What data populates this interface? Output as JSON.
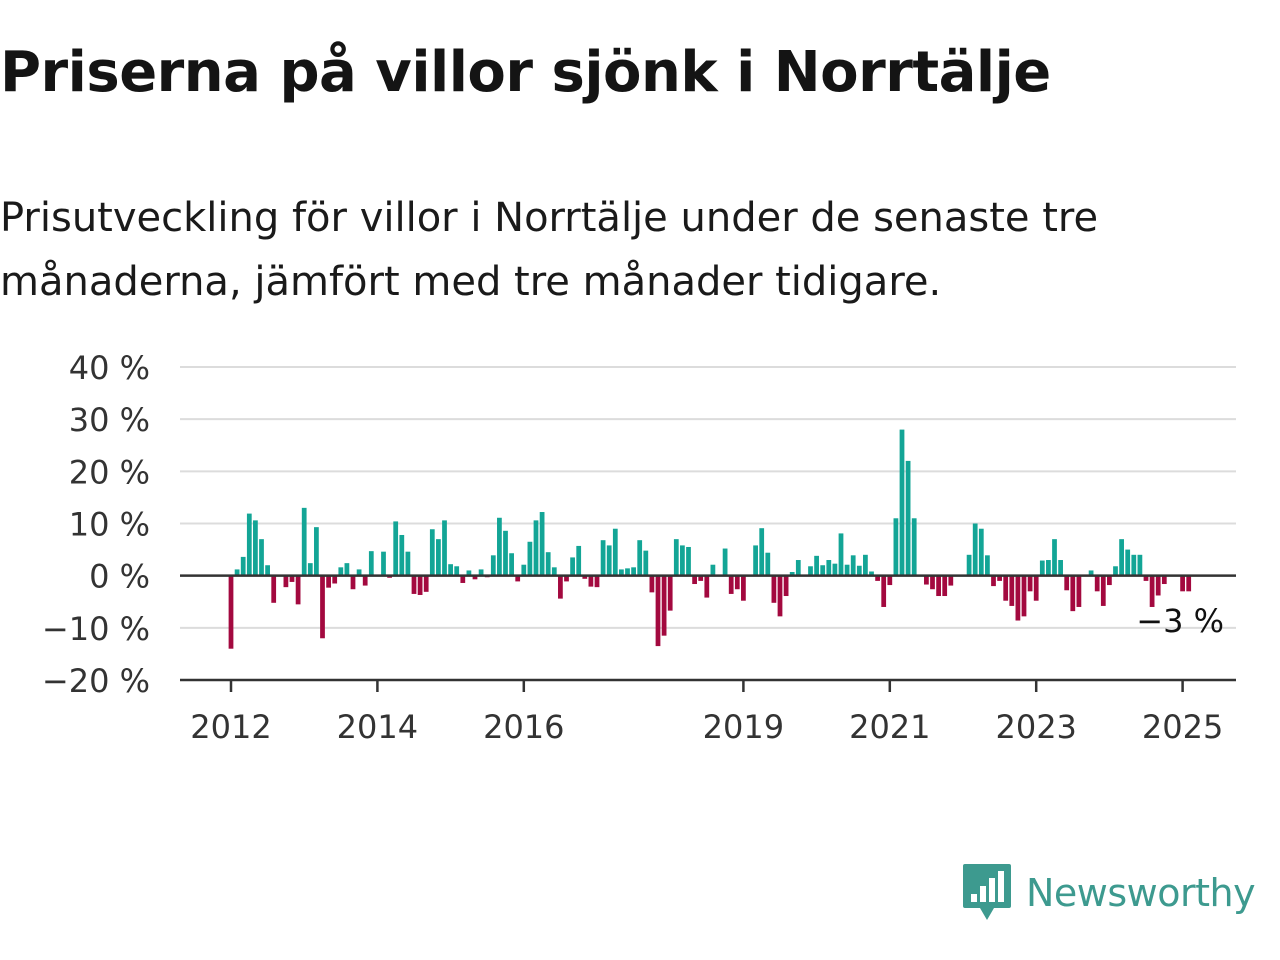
{
  "header": {
    "title": "Priserna på villor sjönk i Norrtälje",
    "subtitle": "Prisutveckling för villor i Norrtälje under de senaste tre månaderna, jämfört med tre månader tidigare."
  },
  "brand": {
    "name": "Newsworthy",
    "icon": "newsworthy-logo-icon",
    "color": "#3d9a8f"
  },
  "chart_data": {
    "type": "bar",
    "y_unit": "%",
    "ylim": [
      -20,
      40
    ],
    "yticks": [
      -20,
      -10,
      0,
      10,
      20,
      30,
      40
    ],
    "ytick_labels": [
      "−20 %",
      "−10 %",
      "0 %",
      "10 %",
      "20 %",
      "30 %",
      "40 %"
    ],
    "xticks": [
      2012,
      2014,
      2016,
      2019,
      2021,
      2023,
      2025
    ],
    "x_start": 2012.0,
    "x_step_months": 1,
    "grid": true,
    "colors": {
      "positive": "#13a596",
      "negative": "#a3093f",
      "grid": "#dcdcdc",
      "axis": "#333333"
    },
    "last_label": "−3 %",
    "values": [
      -14,
      1.2,
      3.6,
      11.9,
      10.6,
      7,
      2,
      -5.2,
      0,
      -2.2,
      -1.2,
      -5.5,
      13,
      2.4,
      9.3,
      -12,
      -2.3,
      -1.5,
      1.6,
      2.4,
      -2.6,
      1.2,
      -1.9,
      4.7,
      0,
      4.6,
      -0.4,
      10.4,
      7.8,
      4.6,
      -3.5,
      -3.7,
      -3.1,
      8.9,
      7,
      10.6,
      2.2,
      1.8,
      -1.4,
      1,
      -0.7,
      1.2,
      -0.3,
      3.9,
      11.1,
      8.6,
      4.3,
      -1.1,
      2.1,
      6.5,
      10.6,
      12.2,
      4.5,
      1.6,
      -4.4,
      -1.1,
      3.5,
      5.7,
      -0.6,
      -2.1,
      -2.2,
      6.8,
      5.8,
      9,
      1.2,
      1.4,
      1.6,
      6.8,
      4.8,
      -3.2,
      -13.5,
      -11.5,
      -6.7,
      7,
      5.8,
      5.5,
      -1.6,
      -1,
      -4.2,
      2.1,
      0,
      5.2,
      -3.5,
      -2.6,
      -4.8,
      0,
      5.8,
      9.1,
      4.4,
      -5.2,
      -7.8,
      -3.9,
      0.7,
      3,
      0,
      1.8,
      3.8,
      2,
      3,
      2.3,
      8.1,
      2.1,
      3.9,
      1.9,
      4,
      0.8,
      -1,
      -6,
      -1.8,
      11,
      28,
      22,
      11,
      0,
      -1.7,
      -2.6,
      -3.9,
      -3.9,
      -1.9,
      0,
      0,
      4,
      10,
      9,
      3.9,
      -2,
      -1,
      -4.8,
      -5.8,
      -8.6,
      -7.8,
      -3,
      -4.8,
      2.9,
      3,
      7,
      3,
      -2.8,
      -6.8,
      -6,
      0,
      1,
      -3,
      -5.8,
      -1.8,
      1.8,
      7,
      5,
      4,
      4,
      -1,
      -6,
      -3.8,
      -1.6,
      0,
      0,
      -3,
      -3
    ]
  }
}
